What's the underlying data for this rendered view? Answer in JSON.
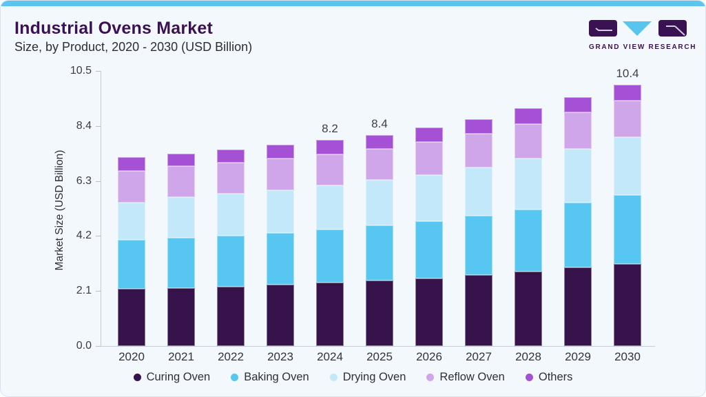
{
  "header": {
    "title": "Industrial Ovens Market",
    "subtitle": "Size, by Product, 2020 - 2030 (USD Billion)"
  },
  "logo": {
    "brand": "GRAND VIEW RESEARCH"
  },
  "colors": {
    "accent_bar": "#5bc5ef",
    "title": "#3a1153",
    "axis_line": "#c6ccd6",
    "background": "#f3f8fc"
  },
  "chart_data": {
    "type": "bar",
    "stacked": true,
    "title": "Industrial Ovens Market Size, by Product, 2020 - 2030 (USD Billion)",
    "xlabel": "",
    "ylabel": "Market Size (USD Billion)",
    "ylim": [
      0,
      10.5
    ],
    "yticks": [
      0.0,
      2.1,
      4.2,
      6.3,
      8.4,
      10.5
    ],
    "grid": false,
    "legend_position": "bottom",
    "categories": [
      "2020",
      "2021",
      "2022",
      "2023",
      "2024",
      "2025",
      "2026",
      "2027",
      "2028",
      "2029",
      "2030"
    ],
    "series": [
      {
        "name": "Curing Oven",
        "color": "#36134b",
        "values": [
          2.27,
          2.32,
          2.37,
          2.45,
          2.53,
          2.6,
          2.68,
          2.83,
          2.96,
          3.12,
          3.26
        ]
      },
      {
        "name": "Baking Oven",
        "color": "#57c7f2",
        "values": [
          1.96,
          2.0,
          2.02,
          2.05,
          2.1,
          2.2,
          2.28,
          2.36,
          2.48,
          2.58,
          2.76
        ]
      },
      {
        "name": "Drying Oven",
        "color": "#c3e8fa",
        "values": [
          1.49,
          1.61,
          1.67,
          1.7,
          1.77,
          1.82,
          1.86,
          1.93,
          2.02,
          2.16,
          2.3
        ]
      },
      {
        "name": "Reflow Oven",
        "color": "#cfa6e9",
        "values": [
          1.27,
          1.24,
          1.24,
          1.26,
          1.24,
          1.25,
          1.32,
          1.35,
          1.39,
          1.45,
          1.45
        ]
      },
      {
        "name": "Others",
        "color": "#a551d6",
        "values": [
          0.55,
          0.5,
          0.52,
          0.55,
          0.57,
          0.54,
          0.56,
          0.58,
          0.62,
          0.62,
          0.63
        ]
      }
    ],
    "total_labels": [
      "",
      "",
      "",
      "",
      "8.2",
      "8.4",
      "",
      "",
      "",
      "",
      "10.4"
    ]
  }
}
